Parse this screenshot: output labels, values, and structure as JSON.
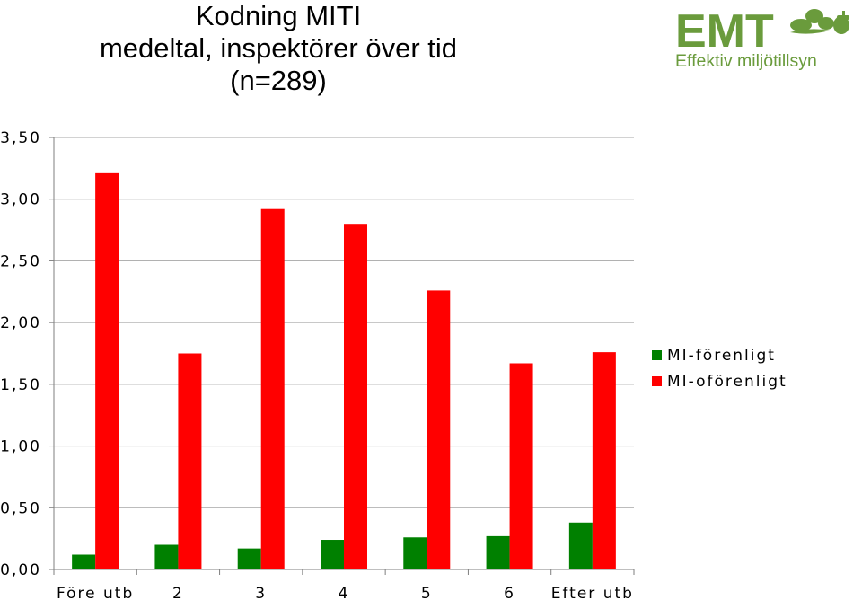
{
  "title": {
    "line1": "Kodning MITI",
    "line2": "medeltal, inspektörer över tid",
    "line3": "(n=289)"
  },
  "logo": {
    "text": "EMT",
    "subtext": "Effektiv miljötillsyn",
    "color": "#6a9b3c",
    "icon": "oak-leaf-acorn-icon"
  },
  "chart_data": {
    "type": "bar",
    "categories": [
      "Före utb",
      "2",
      "3",
      "4",
      "5",
      "6",
      "Efter utb"
    ],
    "series": [
      {
        "name": "MI-förenligt",
        "color": "#008000",
        "values": [
          0.12,
          0.2,
          0.17,
          0.24,
          0.26,
          0.27,
          0.38
        ]
      },
      {
        "name": "MI-oförenligt",
        "color": "#ff0000",
        "values": [
          3.21,
          1.75,
          2.92,
          2.8,
          2.26,
          1.67,
          1.76
        ]
      }
    ],
    "yticks": [
      "0,00",
      "0,50",
      "1,00",
      "1,50",
      "2,00",
      "2,50",
      "3,00",
      "3,50"
    ],
    "ylim": [
      0,
      3.5
    ],
    "grid": true,
    "legend_position": "right"
  }
}
